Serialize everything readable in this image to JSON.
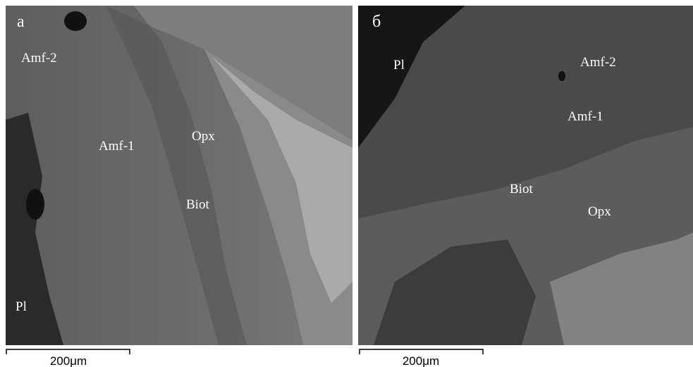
{
  "panels": [
    {
      "letter": "а",
      "labels": [
        "Amf-2",
        "Amf-1",
        "Opx",
        "Biot",
        "Pl"
      ],
      "scale": "200μm"
    },
    {
      "letter": "б",
      "labels": [
        "Pl",
        "Amf-2",
        "Amf-1",
        "Biot",
        "Opx"
      ],
      "scale": "200μm"
    }
  ]
}
